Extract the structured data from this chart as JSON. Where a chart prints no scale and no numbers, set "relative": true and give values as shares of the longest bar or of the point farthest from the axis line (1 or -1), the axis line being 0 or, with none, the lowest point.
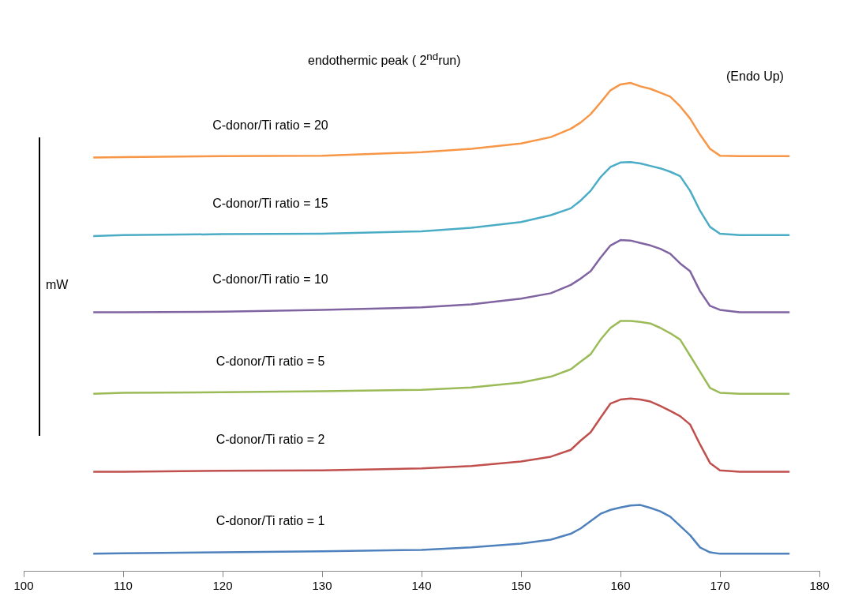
{
  "chart_data": {
    "type": "line",
    "title": "endothermic peak ( 2$^{nd}$run)",
    "ylabel": "mW",
    "annotations": [
      "(Endo Up)"
    ],
    "relative": true,
    "grid": false,
    "legend": false,
    "marker": "none",
    "line_style": "solid",
    "x": [
      107,
      110,
      120,
      130,
      140,
      145,
      150,
      153,
      155,
      156,
      157,
      158,
      159,
      160,
      161,
      162,
      163,
      164,
      165,
      166,
      167,
      168,
      169,
      170,
      172,
      177
    ],
    "xlim": [
      100,
      180
    ],
    "xticks": [
      100,
      110,
      120,
      130,
      140,
      150,
      160,
      170,
      180
    ],
    "series": [
      {
        "name": "C-donor/Ti ratio = 20",
        "color": "#f79646",
        "values": [
          0.847,
          0.848,
          0.85,
          0.851,
          0.858,
          0.865,
          0.876,
          0.889,
          0.906,
          0.919,
          0.936,
          0.96,
          0.985,
          0.997,
          1,
          0.993,
          0.988,
          0.98,
          0.972,
          0.952,
          0.927,
          0.894,
          0.865,
          0.851,
          0.85,
          0.85
        ]
      },
      {
        "name": "C-donor/Ti ratio = 15",
        "color": "#4bacc6",
        "values": [
          0.686,
          0.688,
          0.69,
          0.691,
          0.696,
          0.703,
          0.715,
          0.729,
          0.743,
          0.759,
          0.779,
          0.807,
          0.828,
          0.837,
          0.838,
          0.835,
          0.83,
          0.825,
          0.818,
          0.809,
          0.779,
          0.738,
          0.705,
          0.691,
          0.688,
          0.688
        ]
      },
      {
        "name": "C-donor/Ti ratio = 10",
        "color": "#8064a2",
        "values": [
          0.53,
          0.53,
          0.531,
          0.535,
          0.54,
          0.546,
          0.558,
          0.569,
          0.586,
          0.599,
          0.614,
          0.642,
          0.667,
          0.678,
          0.677,
          0.672,
          0.667,
          0.66,
          0.65,
          0.63,
          0.614,
          0.573,
          0.543,
          0.535,
          0.53,
          0.53
        ]
      },
      {
        "name": "C-donor/Ti ratio = 5",
        "color": "#9bbb59",
        "values": [
          0.363,
          0.365,
          0.366,
          0.368,
          0.371,
          0.376,
          0.386,
          0.398,
          0.413,
          0.429,
          0.444,
          0.474,
          0.498,
          0.512,
          0.512,
          0.51,
          0.507,
          0.498,
          0.487,
          0.474,
          0.441,
          0.408,
          0.375,
          0.365,
          0.363,
          0.363
        ]
      },
      {
        "name": "C-donor/Ti ratio = 2",
        "color": "#c0504d",
        "values": [
          0.203,
          0.203,
          0.205,
          0.206,
          0.21,
          0.215,
          0.224,
          0.234,
          0.248,
          0.267,
          0.284,
          0.314,
          0.343,
          0.351,
          0.353,
          0.351,
          0.347,
          0.338,
          0.328,
          0.317,
          0.3,
          0.259,
          0.221,
          0.206,
          0.203,
          0.203
        ]
      },
      {
        "name": "C-donor/Ti ratio = 1",
        "color": "#4f81bd",
        "values": [
          0.035,
          0.036,
          0.038,
          0.04,
          0.043,
          0.048,
          0.056,
          0.064,
          0.076,
          0.087,
          0.102,
          0.117,
          0.125,
          0.13,
          0.134,
          0.135,
          0.129,
          0.122,
          0.111,
          0.092,
          0.073,
          0.048,
          0.038,
          0.035,
          0.035,
          0.035
        ]
      }
    ]
  }
}
